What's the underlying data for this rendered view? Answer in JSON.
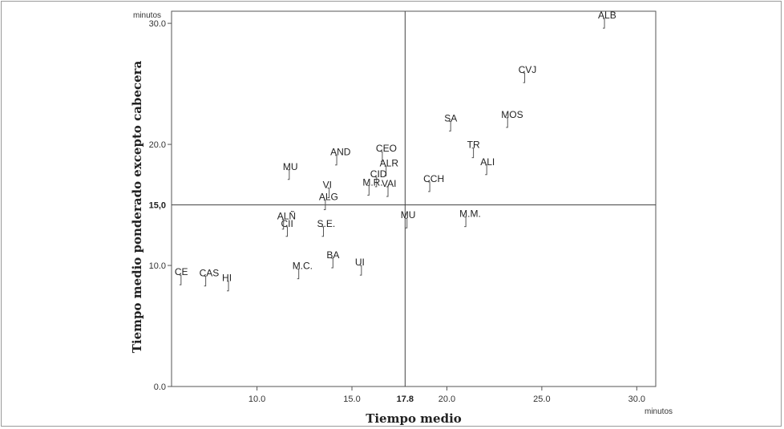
{
  "chart_data": {
    "type": "scatter",
    "xlabel": "Tiempo medio",
    "ylabel": "Tiempo medio ponderado excepto cabecera",
    "x_unit": "minutos",
    "y_unit": "minutos",
    "xlim": [
      5.5,
      31.0
    ],
    "ylim": [
      0,
      31.0
    ],
    "x_ticks": [
      {
        "value": 10,
        "label": "10.0"
      },
      {
        "value": 15,
        "label": "15.0"
      },
      {
        "value": 20,
        "label": "20.0"
      },
      {
        "value": 25,
        "label": "25.0"
      },
      {
        "value": 30,
        "label": "30.0"
      }
    ],
    "y_ticks": [
      {
        "value": 0,
        "label": "0.0"
      },
      {
        "value": 10,
        "label": "10.0"
      },
      {
        "value": 20,
        "label": "20.0"
      },
      {
        "value": 30,
        "label": "30.0"
      }
    ],
    "reference_lines": {
      "x": {
        "value": 17.8,
        "label": "17.8"
      },
      "y": {
        "value": 15,
        "label": "15,0"
      }
    },
    "grid": false,
    "points": [
      {
        "label": "ALB",
        "x": 28.3,
        "y": 30.0
      },
      {
        "label": "CVJ",
        "x": 24.1,
        "y": 25.5
      },
      {
        "label": "SA",
        "x": 20.2,
        "y": 21.5
      },
      {
        "label": "MOS",
        "x": 23.2,
        "y": 21.8
      },
      {
        "label": "TR",
        "x": 21.4,
        "y": 19.3
      },
      {
        "label": "ALI",
        "x": 22.1,
        "y": 17.9
      },
      {
        "label": "CEO",
        "x": 16.6,
        "y": 19.0
      },
      {
        "label": "AND",
        "x": 14.2,
        "y": 18.7
      },
      {
        "label": "MU",
        "x": 11.7,
        "y": 17.5
      },
      {
        "label": "ALR",
        "x": 16.8,
        "y": 17.8
      },
      {
        "label": "CID",
        "x": 16.3,
        "y": 16.9
      },
      {
        "label": "CCH",
        "x": 19.1,
        "y": 16.5
      },
      {
        "label": "VI",
        "x": 13.8,
        "y": 16.0
      },
      {
        "label": "M.R.",
        "x": 15.9,
        "y": 16.2
      },
      {
        "label": "VAI",
        "x": 16.9,
        "y": 16.1
      },
      {
        "label": "ALG",
        "x": 13.6,
        "y": 15.0
      },
      {
        "label": "MU",
        "x": 17.9,
        "y": 13.5
      },
      {
        "label": "M.M.",
        "x": 21.0,
        "y": 13.6
      },
      {
        "label": "CII",
        "x": 11.6,
        "y": 12.8
      },
      {
        "label": "S.E.",
        "x": 13.5,
        "y": 12.8
      },
      {
        "label": "ALÑ",
        "x": 11.4,
        "y": 13.4
      },
      {
        "label": "BA",
        "x": 14.0,
        "y": 10.2
      },
      {
        "label": "UI",
        "x": 15.5,
        "y": 9.6
      },
      {
        "label": "M.C.",
        "x": 12.2,
        "y": 9.3
      },
      {
        "label": "CE",
        "x": 6.0,
        "y": 8.8
      },
      {
        "label": "CAS",
        "x": 7.3,
        "y": 8.7
      },
      {
        "label": "HI",
        "x": 8.5,
        "y": 8.3
      }
    ]
  }
}
